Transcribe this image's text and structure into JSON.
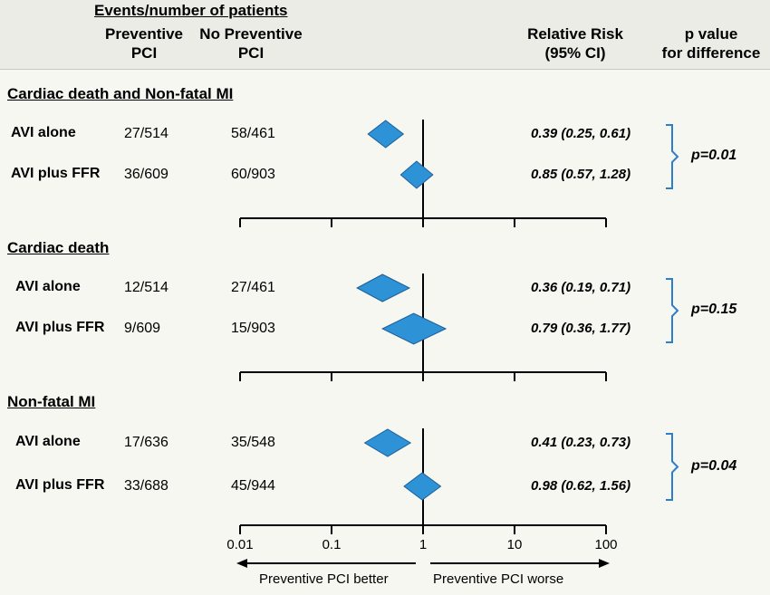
{
  "header": {
    "events_title": "Events/number of patients",
    "preventive_l1": "Preventive",
    "preventive_l2": "PCI",
    "no_preventive_l1": "No Preventive",
    "no_preventive_l2": "PCI",
    "rr_l1": "Relative Risk",
    "rr_l2": "(95% CI)",
    "p_l1": "p value",
    "p_l2": "for difference"
  },
  "chart_data": {
    "type": "forest",
    "x_scale": "log10",
    "xlim": [
      0.01,
      100
    ],
    "reference_line": 1,
    "x_ticks": [
      "0.01",
      "0.1",
      "1",
      "10",
      "100"
    ],
    "x_tick_values": [
      0.01,
      0.1,
      1,
      10,
      100
    ],
    "direction_left": "Preventive PCI better",
    "direction_right": "Preventive PCI worse",
    "marker_color": "#2e93d6",
    "bracket_color": "#2e7fc9",
    "groups": [
      {
        "title": "Cardiac death and Non-fatal MI",
        "p_value": "p=0.01",
        "rows": [
          {
            "label": "AVI alone",
            "preventive": "27/514",
            "no_preventive": "58/461",
            "rr": 0.39,
            "lo": 0.25,
            "hi": 0.61,
            "ci_text": "0.39 (0.25, 0.61)"
          },
          {
            "label": "AVI plus FFR",
            "preventive": "36/609",
            "no_preventive": "60/903",
            "rr": 0.85,
            "lo": 0.57,
            "hi": 1.28,
            "ci_text": "0.85 (0.57, 1.28)"
          }
        ]
      },
      {
        "title": "Cardiac death",
        "p_value": "p=0.15",
        "rows": [
          {
            "label": "AVI alone",
            "preventive": "12/514",
            "no_preventive": "27/461",
            "rr": 0.36,
            "lo": 0.19,
            "hi": 0.71,
            "ci_text": "0.36 (0.19, 0.71)"
          },
          {
            "label": "AVI plus FFR",
            "preventive": "9/609",
            "no_preventive": "15/903",
            "rr": 0.79,
            "lo": 0.36,
            "hi": 1.77,
            "ci_text": "0.79 (0.36, 1.77)"
          }
        ]
      },
      {
        "title": "Non-fatal MI",
        "p_value": "p=0.04",
        "rows": [
          {
            "label": "AVI alone",
            "preventive": "17/636",
            "no_preventive": "35/548",
            "rr": 0.41,
            "lo": 0.23,
            "hi": 0.73,
            "ci_text": "0.41 (0.23, 0.73)"
          },
          {
            "label": "AVI plus FFR",
            "preventive": "33/688",
            "no_preventive": "45/944",
            "rr": 0.98,
            "lo": 0.62,
            "hi": 1.56,
            "ci_text": "0.98 (0.62, 1.56)"
          }
        ]
      }
    ]
  }
}
